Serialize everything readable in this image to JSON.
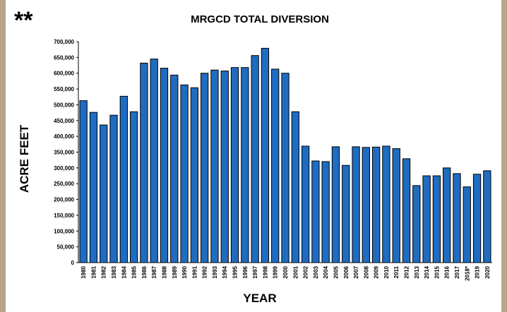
{
  "chart_data": {
    "type": "bar",
    "title": "MRGCD TOTAL DIVERSION",
    "annotation": "**",
    "x_label": "YEAR",
    "y_label": "ACRE FEET",
    "color": "#1f6cc0",
    "categories": [
      "1980",
      "1981",
      "1982",
      "1983",
      "1984",
      "1985",
      "1986",
      "1987",
      "1988",
      "1989",
      "1990",
      "1991",
      "1992",
      "1993",
      "1994",
      "1995",
      "1996",
      "1997",
      "1998",
      "1999",
      "2000",
      "2001",
      "2002",
      "2003",
      "2004",
      "2005",
      "2006",
      "2007",
      "2008",
      "2009",
      "2010",
      "2011",
      "2012",
      "2013",
      "2014",
      "2015",
      "2016",
      "2017",
      "2018*",
      "2019",
      "2020"
    ],
    "values": [
      513000,
      476000,
      436000,
      467000,
      527000,
      478000,
      632000,
      645000,
      616000,
      594000,
      563000,
      554000,
      600000,
      610000,
      607000,
      618000,
      618000,
      656000,
      679000,
      613000,
      600000,
      478000,
      369000,
      322000,
      320000,
      367000,
      308000,
      367000,
      365000,
      366000,
      369000,
      361000,
      329000,
      244000,
      275000,
      275000,
      300000,
      282000,
      240000,
      280000,
      291000
    ],
    "ylim": [
      0,
      700000
    ],
    "yticks": [
      0,
      {
        "value": 50000,
        "label": "50,000"
      },
      {
        "value": 100000,
        "label": "100,000"
      },
      {
        "value": 150000,
        "label": "150,000"
      },
      {
        "value": 200000,
        "label": "200,000"
      },
      {
        "value": 250000,
        "label": "250,000"
      },
      {
        "value": 300000,
        "label": "300,000"
      },
      {
        "value": 350000,
        "label": "350,000"
      },
      {
        "value": 400000,
        "label": "400,000"
      },
      {
        "value": 450000,
        "label": "450,000"
      },
      {
        "value": 500000,
        "label": "500,000"
      },
      {
        "value": 550000,
        "label": "550,000"
      },
      {
        "value": 600000,
        "label": "600,000"
      },
      {
        "value": 650000,
        "label": "650,000"
      },
      {
        "value": 700000,
        "label": "700,000"
      }
    ]
  }
}
